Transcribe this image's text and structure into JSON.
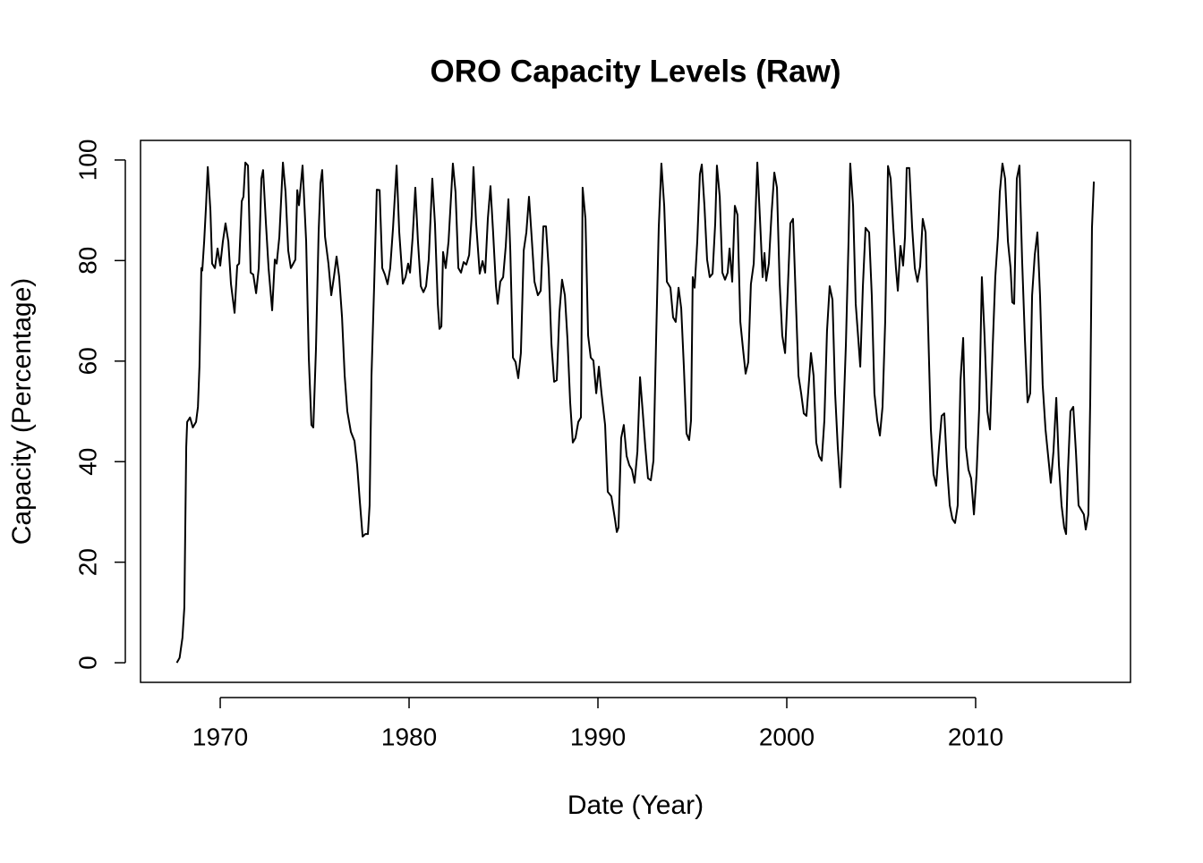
{
  "chart_data": {
    "type": "line",
    "title": "ORO Capacity Levels (Raw)",
    "xlabel": "Date (Year)",
    "ylabel": "Capacity (Percentage)",
    "color": "#000000",
    "xlim": [
      1965.78,
      2018.2
    ],
    "ylim": [
      -3.9,
      103.9
    ],
    "xticks": [
      1970,
      1980,
      1990,
      2000,
      2010
    ],
    "yticks": [
      0,
      20,
      40,
      60,
      80,
      100
    ],
    "x": [
      1967.7,
      1967.85,
      1968.0,
      1968.1,
      1968.2,
      1968.25,
      1968.4,
      1968.55,
      1968.72,
      1968.82,
      1968.9,
      1969.0,
      1969.05,
      1969.15,
      1969.25,
      1969.34,
      1969.48,
      1969.57,
      1969.72,
      1969.86,
      1970.0,
      1970.14,
      1970.28,
      1970.43,
      1970.57,
      1970.76,
      1970.9,
      1971.0,
      1971.14,
      1971.23,
      1971.33,
      1971.47,
      1971.61,
      1971.75,
      1971.9,
      1972.04,
      1972.18,
      1972.27,
      1972.42,
      1972.56,
      1972.75,
      1972.89,
      1972.99,
      1973.13,
      1973.32,
      1973.46,
      1973.6,
      1973.74,
      1973.84,
      1973.98,
      1974.08,
      1974.17,
      1974.36,
      1974.55,
      1974.69,
      1974.83,
      1974.93,
      1975.07,
      1975.21,
      1975.31,
      1975.4,
      1975.55,
      1975.73,
      1975.88,
      1976.02,
      1976.16,
      1976.3,
      1976.45,
      1976.59,
      1976.73,
      1976.92,
      1977.11,
      1977.25,
      1977.39,
      1977.54,
      1977.68,
      1977.82,
      1977.91,
      1978.01,
      1978.15,
      1978.29,
      1978.44,
      1978.58,
      1978.72,
      1978.86,
      1979.0,
      1979.15,
      1979.34,
      1979.48,
      1979.67,
      1979.81,
      1979.95,
      1980.05,
      1980.19,
      1980.33,
      1980.47,
      1980.62,
      1980.76,
      1980.9,
      1981.04,
      1981.23,
      1981.37,
      1981.52,
      1981.61,
      1981.71,
      1981.8,
      1981.94,
      1982.09,
      1982.32,
      1982.46,
      1982.61,
      1982.75,
      1982.89,
      1983.03,
      1983.18,
      1983.32,
      1983.41,
      1983.55,
      1983.74,
      1983.89,
      1984.03,
      1984.17,
      1984.31,
      1984.45,
      1984.6,
      1984.69,
      1984.83,
      1984.98,
      1985.12,
      1985.26,
      1985.36,
      1985.5,
      1985.64,
      1985.78,
      1985.92,
      1986.07,
      1986.21,
      1986.35,
      1986.49,
      1986.64,
      1986.82,
      1986.97,
      1987.11,
      1987.25,
      1987.39,
      1987.54,
      1987.68,
      1987.82,
      1987.96,
      1988.1,
      1988.25,
      1988.39,
      1988.53,
      1988.67,
      1988.81,
      1988.96,
      1989.1,
      1989.19,
      1989.34,
      1989.48,
      1989.62,
      1989.76,
      1989.91,
      1990.05,
      1990.19,
      1990.38,
      1990.52,
      1990.71,
      1990.9,
      1991.0,
      1991.09,
      1991.23,
      1991.37,
      1991.52,
      1991.66,
      1991.8,
      1991.94,
      1992.09,
      1992.23,
      1992.37,
      1992.51,
      1992.65,
      1992.8,
      1992.94,
      1993.08,
      1993.22,
      1993.36,
      1993.51,
      1993.65,
      1993.84,
      1993.98,
      1994.12,
      1994.27,
      1994.41,
      1994.55,
      1994.69,
      1994.83,
      1994.93,
      1995.02,
      1995.12,
      1995.26,
      1995.4,
      1995.5,
      1995.64,
      1995.78,
      1995.92,
      1996.07,
      1996.21,
      1996.3,
      1996.45,
      1996.59,
      1996.73,
      1996.87,
      1996.97,
      1997.11,
      1997.25,
      1997.39,
      1997.54,
      1997.68,
      1997.82,
      1997.96,
      1998.1,
      1998.25,
      1998.44,
      1998.58,
      1998.72,
      1998.82,
      1998.91,
      1999.05,
      1999.19,
      1999.34,
      1999.48,
      1999.62,
      1999.76,
      1999.91,
      2000.05,
      2000.19,
      2000.33,
      2000.47,
      2000.62,
      2000.76,
      2000.9,
      2001.04,
      2001.18,
      2001.28,
      2001.42,
      2001.56,
      2001.71,
      2001.85,
      2001.99,
      2002.13,
      2002.27,
      2002.42,
      2002.56,
      2002.7,
      2002.84,
      2002.99,
      2003.13,
      2003.27,
      2003.36,
      2003.51,
      2003.65,
      2003.79,
      2003.89,
      2004.03,
      2004.17,
      2004.36,
      2004.5,
      2004.64,
      2004.79,
      2004.93,
      2005.07,
      2005.21,
      2005.36,
      2005.5,
      2005.64,
      2005.78,
      2005.88,
      2006.02,
      2006.16,
      2006.26,
      2006.35,
      2006.49,
      2006.64,
      2006.78,
      2006.92,
      2007.06,
      2007.2,
      2007.35,
      2007.49,
      2007.63,
      2007.77,
      2007.91,
      2008.06,
      2008.2,
      2008.34,
      2008.48,
      2008.63,
      2008.77,
      2008.91,
      2009.05,
      2009.2,
      2009.34,
      2009.48,
      2009.62,
      2009.76,
      2009.91,
      2010.05,
      2010.19,
      2010.33,
      2010.47,
      2010.62,
      2010.76,
      2010.9,
      2011.04,
      2011.18,
      2011.28,
      2011.42,
      2011.56,
      2011.71,
      2011.85,
      2011.94,
      2012.04,
      2012.18,
      2012.32,
      2012.46,
      2012.61,
      2012.75,
      2012.89,
      2012.99,
      2013.13,
      2013.27,
      2013.41,
      2013.55,
      2013.7,
      2013.84,
      2013.98,
      2014.12,
      2014.27,
      2014.41,
      2014.55,
      2014.69,
      2014.79,
      2014.88,
      2015.02,
      2015.17,
      2015.31,
      2015.45,
      2015.59,
      2015.73,
      2015.83,
      2015.97,
      2016.07,
      2016.16,
      2016.26
    ],
    "values": [
      0,
      1,
      5,
      11,
      42.9,
      47.9,
      48.8,
      46.8,
      47.9,
      50.9,
      58.9,
      78.5,
      78,
      83.8,
      91,
      98.6,
      90,
      79.4,
      78.5,
      82.4,
      79,
      83.8,
      87.4,
      83.8,
      75.3,
      69.6,
      79,
      79.4,
      91.8,
      92.7,
      99.5,
      98.9,
      77.6,
      77.2,
      73.5,
      78.5,
      96.3,
      98,
      87.4,
      78.5,
      70.1,
      80.2,
      79.4,
      84.7,
      99.5,
      93.6,
      82,
      78.5,
      79.2,
      80.2,
      94,
      91,
      98.9,
      83.8,
      60.7,
      47.3,
      46.8,
      62.5,
      85.6,
      95.4,
      98,
      84.7,
      79.4,
      73.1,
      76.7,
      80.8,
      76.7,
      68.7,
      57.1,
      50,
      45.9,
      44.1,
      39.3,
      32.2,
      25.1,
      25.6,
      25.6,
      31.3,
      57.1,
      74.9,
      94.1,
      94,
      78.5,
      77.2,
      75.3,
      78.5,
      86.5,
      98.9,
      85.6,
      75.4,
      76.7,
      79.4,
      77.6,
      84.7,
      94.5,
      83.8,
      74.9,
      73.7,
      74.9,
      80.2,
      96.3,
      87.4,
      71.4,
      66.4,
      66.9,
      81.7,
      78.5,
      83.8,
      99.3,
      93.6,
      78.5,
      77.6,
      79.7,
      79.2,
      81.1,
      89.1,
      98.6,
      87.4,
      77.4,
      79.9,
      77.6,
      88.3,
      94.8,
      85.6,
      74.9,
      71.4,
      75.8,
      76.7,
      82.9,
      92.2,
      82,
      60.7,
      59.8,
      56.6,
      61.6,
      82,
      85.6,
      92.7,
      84.7,
      75.8,
      73.1,
      74,
      86.8,
      86.8,
      78.5,
      63.3,
      55.9,
      56.2,
      69.6,
      76.2,
      73.1,
      64.2,
      51.8,
      43.8,
      44.7,
      47.9,
      48.8,
      94.5,
      88.3,
      65.1,
      60.7,
      60.1,
      53.6,
      58.9,
      53.6,
      47.3,
      34,
      33.1,
      28.6,
      26,
      26.9,
      44.7,
      47.3,
      41.1,
      39.3,
      38.4,
      35.8,
      42,
      56.8,
      50,
      42.9,
      36.7,
      36.3,
      40.2,
      64.2,
      86.5,
      99.3,
      90.9,
      75.8,
      74.6,
      68.7,
      67.8,
      74.6,
      70.5,
      58.9,
      45.6,
      44.3,
      48.2,
      76.7,
      74.6,
      83.8,
      97.2,
      99.1,
      90.9,
      80.2,
      76.7,
      77.4,
      87.4,
      98.9,
      92.7,
      77.6,
      76.2,
      77.6,
      82.4,
      75.8,
      90.9,
      89.1,
      67.8,
      62.5,
      57.5,
      59.8,
      75.3,
      79.4,
      99.5,
      88.3,
      76.7,
      81.5,
      76,
      79.4,
      89.1,
      97.5,
      94.5,
      75.8,
      65.1,
      61.6,
      74,
      87.4,
      88.3,
      73.1,
      57.1,
      53.6,
      49.6,
      49.1,
      56.2,
      61.6,
      57.1,
      43.8,
      41.1,
      40.2,
      48.2,
      66,
      74.9,
      72.2,
      53.6,
      42.9,
      34.9,
      48.2,
      63.3,
      83.8,
      99.3,
      90.9,
      71.4,
      64.2,
      58.9,
      74.9,
      86.5,
      85.6,
      73.1,
      53.6,
      48.2,
      45.2,
      50.9,
      67.8,
      98.8,
      96.3,
      86.5,
      78.5,
      74,
      82.9,
      79,
      84.7,
      98.4,
      98.4,
      86.5,
      78.5,
      75.8,
      78.8,
      88.3,
      85.6,
      66,
      46.4,
      37.5,
      35.2,
      42.9,
      49.1,
      49.6,
      39.3,
      31.3,
      28.6,
      27.8,
      31.3,
      56.2,
      64.6,
      42.9,
      38.4,
      36.7,
      29.5,
      37.5,
      50.9,
      76.7,
      65.1,
      50,
      46.4,
      62.5,
      76.7,
      84.7,
      93.6,
      99.3,
      96.3,
      83.8,
      78.5,
      71.7,
      71.4,
      96.3,
      98.9,
      80.2,
      64.2,
      51.8,
      53.6,
      73.1,
      81.1,
      85.6,
      73.1,
      55.3,
      46.4,
      41.1,
      35.8,
      42,
      52.7,
      39.3,
      31.3,
      26.9,
      25.6,
      37.5,
      50,
      50.9,
      42,
      31.3,
      30.4,
      29.5,
      26.5,
      29.5,
      52.7,
      86.5,
      95.7
    ]
  }
}
